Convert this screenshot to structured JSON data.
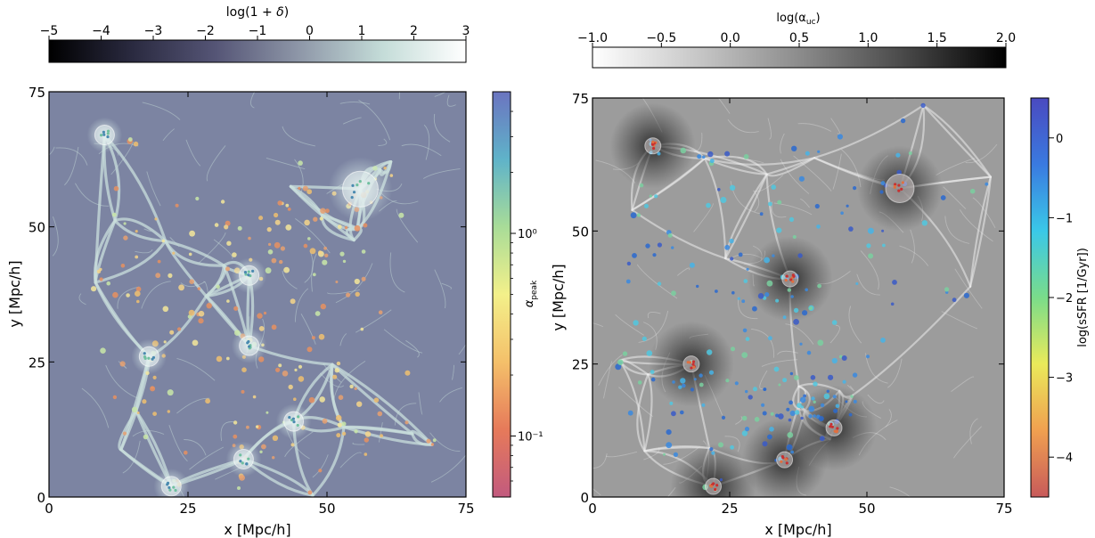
{
  "chart_data": [
    {
      "type": "heatmap",
      "panel": "left",
      "xlabel": "x [Mpc/h]",
      "ylabel": "y [Mpc/h]",
      "xlim": [
        0,
        75
      ],
      "ylim": [
        0,
        75
      ],
      "xticks": [
        0,
        25,
        50,
        75
      ],
      "yticks": [
        0,
        25,
        50,
        75
      ],
      "xtick_labels": [
        "0",
        "25",
        "50",
        "75"
      ],
      "ytick_labels": [
        "0",
        "25",
        "50",
        "75"
      ],
      "background_colorbar": {
        "label": "log(1 + δ)",
        "orientation": "horizontal",
        "placement": "top",
        "range": [
          -5,
          3
        ],
        "ticks": [
          -5,
          -4,
          -3,
          -2,
          -1,
          0,
          1,
          2,
          3
        ],
        "tick_labels": [
          "−5",
          "−4",
          "−3",
          "−2",
          "−1",
          "0",
          "1",
          "2",
          "3"
        ],
        "colors": [
          "#000000",
          "#2a2a40",
          "#555576",
          "#8e97a8",
          "#c4dcd8",
          "#ffffff"
        ]
      },
      "point_colorbar": {
        "label": "α_peak",
        "label_main": "α",
        "label_sub": "peak",
        "orientation": "vertical",
        "placement": "right",
        "scale": "log",
        "range": [
          0.05,
          5
        ],
        "ticks": [
          0.1,
          1
        ],
        "tick_labels": [
          "10⁻¹",
          "10⁰"
        ],
        "colors": [
          "#c25a7e",
          "#e67a5a",
          "#f4c06a",
          "#f3f08a",
          "#a8dc98",
          "#5fb3c9",
          "#6b74c0"
        ]
      },
      "clusters": [
        {
          "x": 10,
          "y": 67
        },
        {
          "x": 56,
          "y": 57
        },
        {
          "x": 36,
          "y": 41
        },
        {
          "x": 36,
          "y": 28
        },
        {
          "x": 44,
          "y": 14
        },
        {
          "x": 35,
          "y": 7
        },
        {
          "x": 22,
          "y": 2
        },
        {
          "x": 18,
          "y": 26
        }
      ]
    },
    {
      "type": "heatmap",
      "panel": "right",
      "xlabel": "x [Mpc/h]",
      "ylabel": "y [Mpc/h]",
      "xlim": [
        0,
        75
      ],
      "ylim": [
        0,
        75
      ],
      "xticks": [
        0,
        25,
        50,
        75
      ],
      "yticks": [
        0,
        25,
        50,
        75
      ],
      "xtick_labels": [
        "0",
        "25",
        "50",
        "75"
      ],
      "ytick_labels": [
        "0",
        "25",
        "50",
        "75"
      ],
      "background_colorbar": {
        "label": "log(α_uc)",
        "label_main": "log(α",
        "label_sub": "uc",
        "label_end": ")",
        "orientation": "horizontal",
        "placement": "top",
        "range": [
          -1.0,
          2.0
        ],
        "ticks": [
          -1.0,
          -0.5,
          0.0,
          0.5,
          1.0,
          1.5,
          2.0
        ],
        "tick_labels": [
          "−1.0",
          "−0.5",
          "0.0",
          "0.5",
          "1.0",
          "1.5",
          "2.0"
        ],
        "colors": [
          "#ffffff",
          "#c8c8c8",
          "#8c8c8c",
          "#4a4a4a",
          "#000000"
        ]
      },
      "point_colorbar": {
        "label": "log(sSFR [1/Gyr])",
        "orientation": "vertical",
        "placement": "right",
        "range": [
          -4.5,
          0.5
        ],
        "ticks": [
          -4,
          -3,
          -2,
          -1,
          0
        ],
        "tick_labels": [
          "−4",
          "−3",
          "−2",
          "−1",
          "0"
        ],
        "colors": [
          "#c85a5a",
          "#f0a050",
          "#eaea5a",
          "#7adc8a",
          "#3ac8e8",
          "#3a7ae0",
          "#4a4ac0"
        ]
      },
      "clusters": [
        {
          "x": 11,
          "y": 66
        },
        {
          "x": 56,
          "y": 58
        },
        {
          "x": 36,
          "y": 41
        },
        {
          "x": 44,
          "y": 13
        },
        {
          "x": 35,
          "y": 7
        },
        {
          "x": 22,
          "y": 2
        },
        {
          "x": 18,
          "y": 25
        }
      ]
    }
  ]
}
